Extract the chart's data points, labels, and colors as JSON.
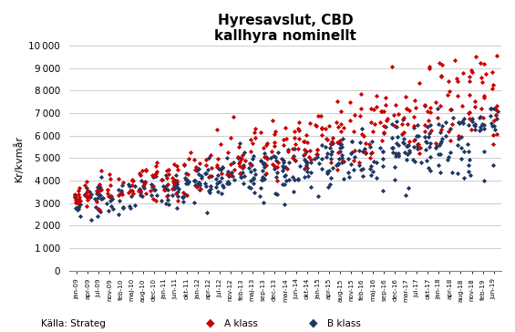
{
  "title": "Hyresavslut, CBD",
  "subtitle": "kallhyra nominellt",
  "ylabel": "Kr/kvmår",
  "source": "Källa: Strateg",
  "legend_a": "A klass",
  "legend_b": "B klass",
  "color_a": "#CC0000",
  "color_b": "#1F3864",
  "ylim": [
    0,
    10000
  ],
  "yticks": [
    0,
    1000,
    2000,
    3000,
    4000,
    5000,
    6000,
    7000,
    8000,
    9000,
    10000
  ],
  "tick_labels": [
    "jan-09",
    "apr-09",
    "jul-09",
    "nov-09",
    "feb-10",
    "maj-10",
    "aug-10",
    "dec-10",
    "jan-11",
    "jun-11",
    "okt-11",
    "jan-12",
    "apr-12",
    "jul-12",
    "nov-12",
    "feb-13",
    "maj-13",
    "sep-13",
    "dec-13",
    "mar-14",
    "jun-14",
    "okt-14",
    "jan-15",
    "apr-15",
    "aug-15",
    "nov-15",
    "feb-16",
    "maj-16",
    "sep-16",
    "dec-16",
    "mar-17",
    "jul-17",
    "okt-17",
    "jan-18",
    "apr-18",
    "aug-18",
    "nov-18",
    "feb-19",
    "jun-19"
  ],
  "num_ticks": 39,
  "seed": 7
}
